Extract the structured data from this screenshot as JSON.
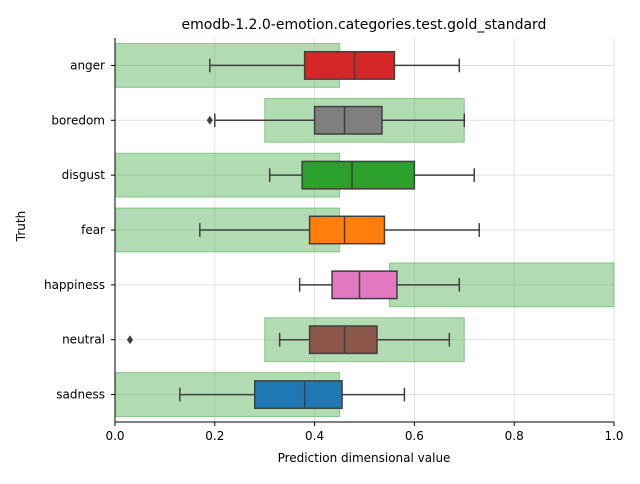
{
  "chart_data": {
    "type": "box",
    "title": "emodb-1.2.0-emotion.categories.test.gold_standard",
    "xlabel": "Prediction dimensional value",
    "ylabel": "Truth",
    "xlim": [
      0,
      1
    ],
    "xticks": [
      "0.0",
      "0.2",
      "0.4",
      "0.6",
      "0.8",
      "1.0"
    ],
    "grid": true,
    "categories": [
      "anger",
      "boredom",
      "disgust",
      "fear",
      "happiness",
      "neutral",
      "sadness"
    ],
    "boxes": [
      {
        "category": "anger",
        "whisker_low": 0.19,
        "q1": 0.38,
        "median": 0.48,
        "q3": 0.56,
        "whisker_high": 0.69,
        "outliers": [],
        "color": "#d62728"
      },
      {
        "category": "boredom",
        "whisker_low": 0.2,
        "q1": 0.4,
        "median": 0.46,
        "q3": 0.535,
        "whisker_high": 0.7,
        "outliers": [
          0.19
        ],
        "color": "#7f7f7f"
      },
      {
        "category": "disgust",
        "whisker_low": 0.31,
        "q1": 0.375,
        "median": 0.475,
        "q3": 0.6,
        "whisker_high": 0.72,
        "outliers": [],
        "color": "#2ca02c"
      },
      {
        "category": "fear",
        "whisker_low": 0.17,
        "q1": 0.39,
        "median": 0.46,
        "q3": 0.54,
        "whisker_high": 0.73,
        "outliers": [],
        "color": "#ff7f0e"
      },
      {
        "category": "happiness",
        "whisker_low": 0.37,
        "q1": 0.435,
        "median": 0.49,
        "q3": 0.565,
        "whisker_high": 0.69,
        "outliers": [],
        "color": "#e377c2"
      },
      {
        "category": "neutral",
        "whisker_low": 0.33,
        "q1": 0.39,
        "median": 0.46,
        "q3": 0.525,
        "whisker_high": 0.67,
        "outliers": [
          0.03
        ],
        "color": "#8c564b"
      },
      {
        "category": "sadness",
        "whisker_low": 0.13,
        "q1": 0.28,
        "median": 0.38,
        "q3": 0.455,
        "whisker_high": 0.58,
        "outliers": [],
        "color": "#1f77b4"
      }
    ],
    "gold_ranges": [
      {
        "category": "anger",
        "from": 0.0,
        "to": 0.45
      },
      {
        "category": "boredom",
        "from": 0.3,
        "to": 0.7
      },
      {
        "category": "disgust",
        "from": 0.0,
        "to": 0.45
      },
      {
        "category": "fear",
        "from": 0.0,
        "to": 0.45
      },
      {
        "category": "happiness",
        "from": 0.55,
        "to": 1.0
      },
      {
        "category": "neutral",
        "from": 0.3,
        "to": 0.7
      },
      {
        "category": "sadness",
        "from": 0.0,
        "to": 0.45
      }
    ],
    "gold_range_color": "#2ca02c"
  }
}
